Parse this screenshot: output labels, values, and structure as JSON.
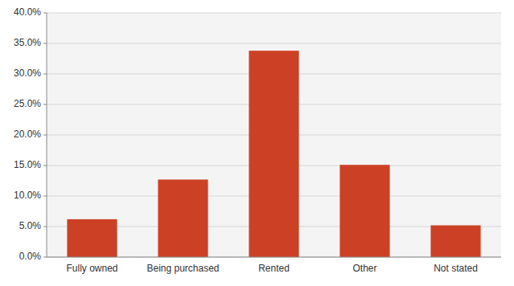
{
  "chart_data": {
    "type": "bar",
    "categories": [
      "Fully owned",
      "Being purchased",
      "Rented",
      "Other",
      "Not stated"
    ],
    "values": [
      0.062,
      0.127,
      0.338,
      0.151,
      0.052
    ],
    "color": "#CC4125",
    "ylim": [
      0.0,
      0.4
    ],
    "yticks": [
      {
        "value": 0.0,
        "label": "0.0%"
      },
      {
        "value": 0.05,
        "label": "5.0%"
      },
      {
        "value": 0.1,
        "label": "10.0%"
      },
      {
        "value": 0.15,
        "label": "15.0%"
      },
      {
        "value": 0.2,
        "label": "20.0%"
      },
      {
        "value": 0.25,
        "label": "25.0%"
      },
      {
        "value": 0.3,
        "label": "30.0%"
      },
      {
        "value": 0.35,
        "label": "35.0%"
      },
      {
        "value": 0.4,
        "label": "40.0%"
      }
    ],
    "grid": true
  }
}
